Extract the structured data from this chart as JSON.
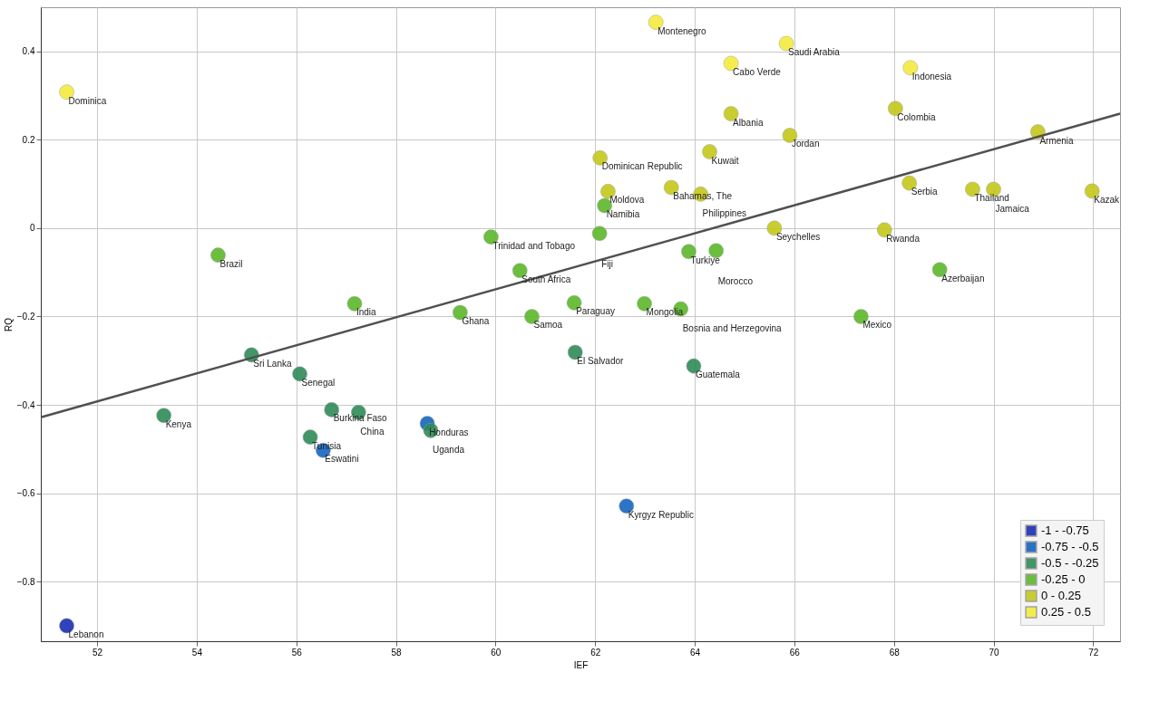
{
  "chart_data": {
    "type": "scatter",
    "xlabel": "IEF",
    "ylabel": "RQ",
    "xlim": [
      50.87,
      72.54
    ],
    "ylim": [
      -0.935,
      0.5
    ],
    "xticks": [
      52,
      54,
      56,
      58,
      60,
      62,
      64,
      66,
      68,
      70,
      72
    ],
    "yticks": [
      -0.8,
      -0.6,
      -0.4,
      -0.2,
      0,
      0.2,
      0.4
    ],
    "grid": true,
    "legend": "bottom right",
    "marker": "circle",
    "series": [
      {
        "name": "-1 - -0.75",
        "color": "#1a2fb4",
        "x": [
          51.39
        ],
        "values": [
          -0.9
        ]
      },
      {
        "name": "-0.75 - -0.5",
        "color": "#1565c0",
        "x": [
          58.63,
          56.54,
          62.63
        ],
        "values": [
          -0.442,
          -0.503,
          -0.629
        ]
      },
      {
        "name": "-0.5 - -0.25",
        "color": "#2e8b57",
        "x": [
          55.1,
          61.6,
          63.98,
          56.07,
          53.34,
          56.71,
          57.25,
          58.7,
          56.28
        ],
        "values": [
          -0.287,
          -0.281,
          -0.312,
          -0.33,
          -0.424,
          -0.411,
          -0.417,
          -0.458,
          -0.473
        ]
      },
      {
        "name": "-0.25 - 0",
        "color": "#5cb82a",
        "x": [
          62.19,
          59.91,
          62.09,
          54.43,
          63.88,
          64.43,
          68.92,
          60.49,
          57.17,
          61.58,
          62.99,
          63.72,
          59.29,
          60.73,
          67.34
        ],
        "values": [
          0.051,
          -0.02,
          -0.012,
          -0.061,
          -0.053,
          -0.051,
          -0.094,
          -0.096,
          -0.171,
          -0.169,
          -0.171,
          -0.183,
          -0.191,
          -0.2,
          -0.2
        ]
      },
      {
        "name": "0 - 0.25",
        "color": "#c4c81a",
        "x": [
          64.73,
          68.03,
          65.91,
          64.3,
          62.1,
          70.89,
          62.26,
          63.53,
          64.12,
          68.31,
          69.58,
          70.0,
          71.98,
          65.6,
          67.81
        ],
        "values": [
          0.259,
          0.271,
          0.21,
          0.173,
          0.159,
          0.218,
          0.083,
          0.092,
          0.077,
          0.102,
          0.088,
          0.088,
          0.084,
          0.0,
          -0.004
        ]
      },
      {
        "name": "0.25 - 0.5",
        "color": "#f5ec3c",
        "x": [
          51.39,
          63.22,
          65.84,
          64.73,
          68.33
        ],
        "values": [
          0.308,
          0.466,
          0.418,
          0.373,
          0.363
        ]
      },
      {
        "type": "line",
        "marker": "none",
        "color": "#505050",
        "x": [
          50.87,
          72.54
        ],
        "values": [
          -0.428,
          0.259
        ]
      }
    ],
    "annotations": [
      {
        "text": "Lebanon",
        "x": 51.39,
        "y": -0.9
      },
      {
        "text": "Honduras",
        "x": 58.63,
        "y": -0.442
      },
      {
        "text": "Eswatini",
        "x": 56.54,
        "y": -0.503
      },
      {
        "text": "Kyrgyz Republic",
        "x": 62.63,
        "y": -0.629
      },
      {
        "text": "Sri Lanka",
        "x": 55.1,
        "y": -0.287
      },
      {
        "text": "El Salvador",
        "x": 61.6,
        "y": -0.281
      },
      {
        "text": "Guatemala",
        "x": 63.98,
        "y": -0.312
      },
      {
        "text": "Senegal",
        "x": 56.07,
        "y": -0.33
      },
      {
        "text": "Kenya",
        "x": 53.34,
        "y": -0.424
      },
      {
        "text": "Burkina Faso",
        "x": 56.71,
        "y": -0.411
      },
      {
        "text": "China",
        "x": 57.25,
        "y": -0.417
      },
      {
        "text": "Uganda",
        "x": 58.7,
        "y": -0.458
      },
      {
        "text": "Tunisia",
        "x": 56.28,
        "y": -0.473
      },
      {
        "text": "Namibia",
        "x": 62.19,
        "y": 0.051
      },
      {
        "text": "Trinidad and Tobago",
        "x": 59.91,
        "y": -0.02
      },
      {
        "text": "Fiji",
        "x": 62.09,
        "y": -0.012
      },
      {
        "text": "Brazil",
        "x": 54.43,
        "y": -0.061
      },
      {
        "text": "Turkiye",
        "x": 63.88,
        "y": -0.053
      },
      {
        "text": "Morocco",
        "x": 64.43,
        "y": -0.051
      },
      {
        "text": "Azerbaijan",
        "x": 68.92,
        "y": -0.094
      },
      {
        "text": "South Africa",
        "x": 60.49,
        "y": -0.096
      },
      {
        "text": "India",
        "x": 57.17,
        "y": -0.171
      },
      {
        "text": "Paraguay",
        "x": 61.58,
        "y": -0.169
      },
      {
        "text": "Mongolia",
        "x": 62.99,
        "y": -0.171
      },
      {
        "text": "Bosnia and Herzegovina",
        "x": 63.72,
        "y": -0.183
      },
      {
        "text": "Ghana",
        "x": 59.29,
        "y": -0.191
      },
      {
        "text": "Samoa",
        "x": 60.73,
        "y": -0.2
      },
      {
        "text": "Mexico",
        "x": 67.34,
        "y": -0.2
      },
      {
        "text": "Albania",
        "x": 64.73,
        "y": 0.259
      },
      {
        "text": "Colombia",
        "x": 68.03,
        "y": 0.271
      },
      {
        "text": "Jordan",
        "x": 65.91,
        "y": 0.21
      },
      {
        "text": "Kuwait",
        "x": 64.3,
        "y": 0.173
      },
      {
        "text": "Dominican Republic",
        "x": 62.1,
        "y": 0.159
      },
      {
        "text": "Armenia",
        "x": 70.89,
        "y": 0.218
      },
      {
        "text": "Moldova",
        "x": 62.26,
        "y": 0.083
      },
      {
        "text": "Bahamas, The",
        "x": 63.53,
        "y": 0.092
      },
      {
        "text": "Philippines",
        "x": 64.12,
        "y": 0.077
      },
      {
        "text": "Serbia",
        "x": 68.31,
        "y": 0.102
      },
      {
        "text": "Thailand",
        "x": 69.58,
        "y": 0.088
      },
      {
        "text": "Jamaica",
        "x": 70.0,
        "y": 0.088
      },
      {
        "text": "Kazak",
        "x": 71.98,
        "y": 0.084
      },
      {
        "text": "Seychelles",
        "x": 65.6,
        "y": 0.0
      },
      {
        "text": "Rwanda",
        "x": 67.81,
        "y": -0.004
      },
      {
        "text": "Dominica",
        "x": 51.39,
        "y": 0.308
      },
      {
        "text": "Montenegro",
        "x": 63.22,
        "y": 0.466
      },
      {
        "text": "Saudi Arabia",
        "x": 65.84,
        "y": 0.418
      },
      {
        "text": "Cabo Verde",
        "x": 64.73,
        "y": 0.373
      },
      {
        "text": "Indonesia",
        "x": 68.33,
        "y": 0.363
      }
    ]
  }
}
